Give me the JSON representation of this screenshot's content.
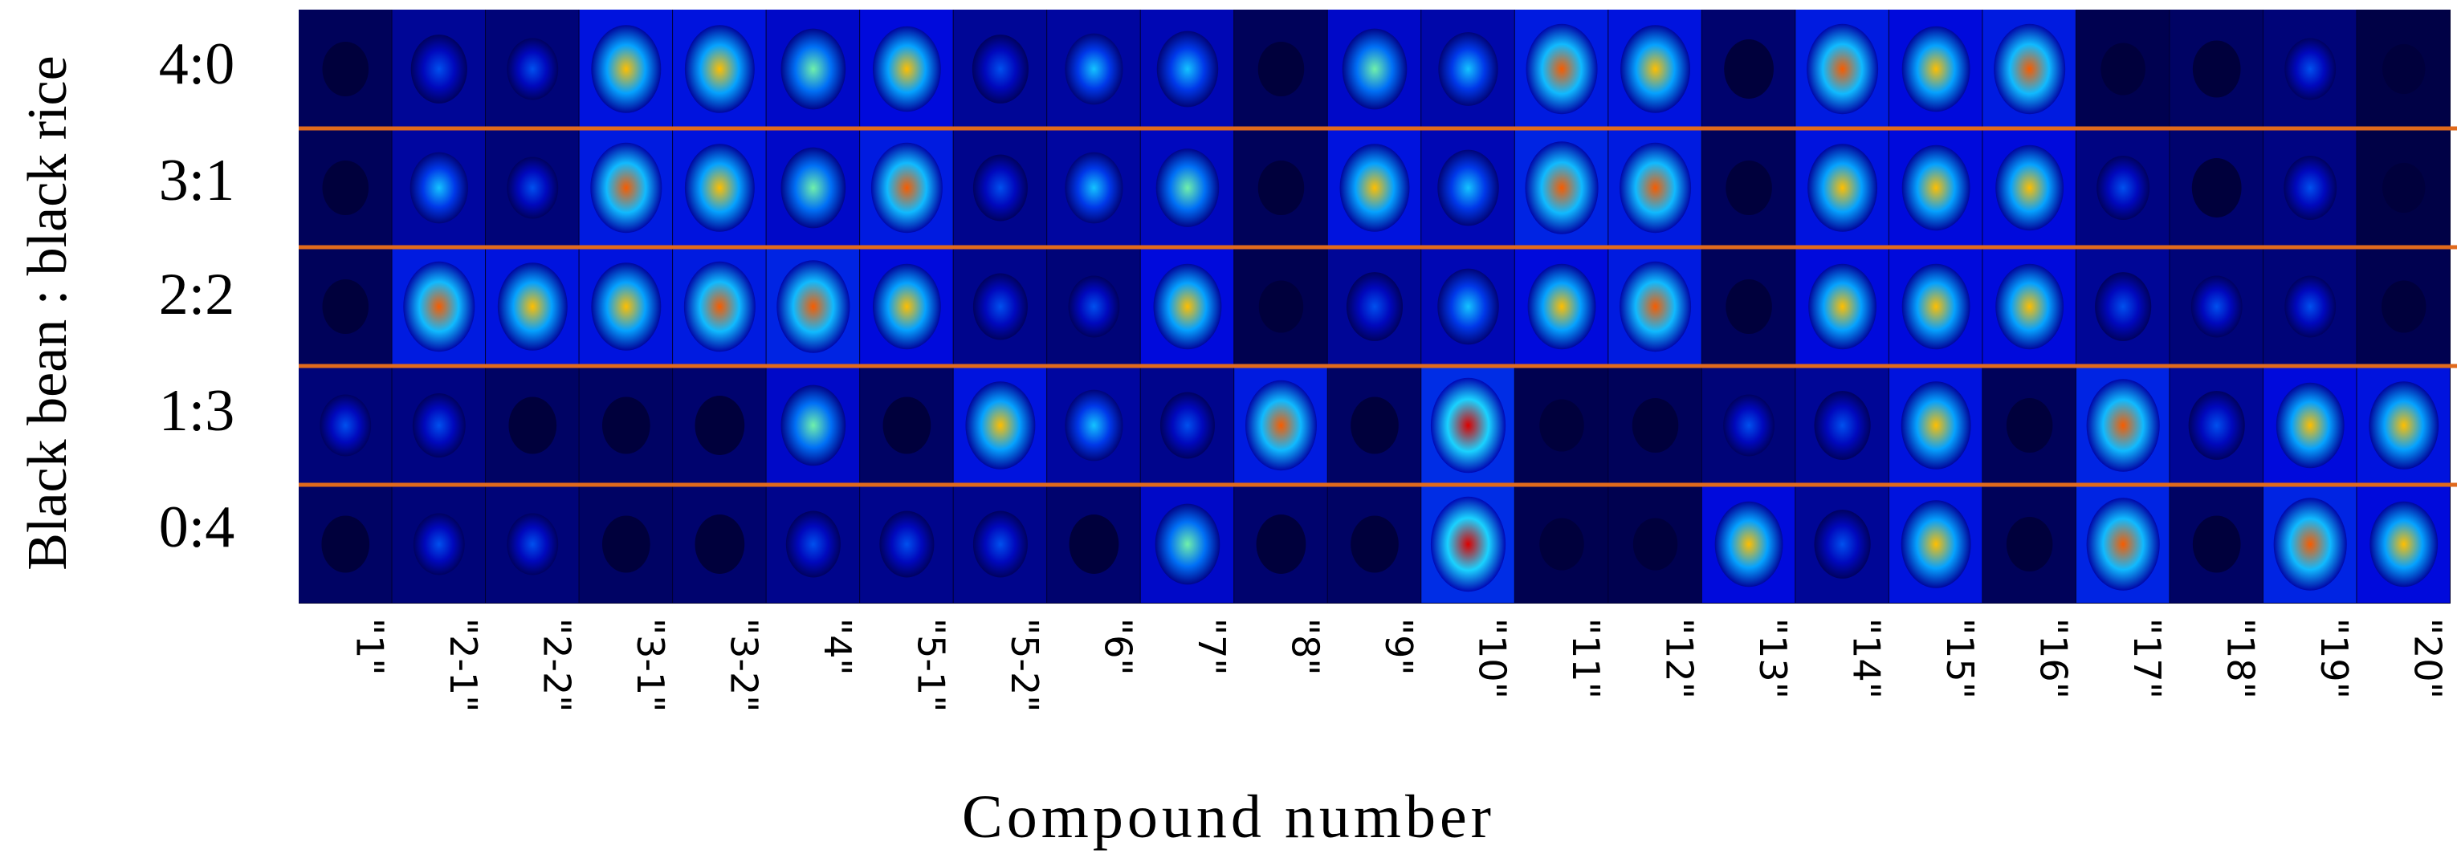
{
  "chart_data": {
    "type": "heatmap",
    "ylabel": "Black bean : black rice",
    "xlabel": "Compound number",
    "rows": [
      "4:0",
      "3:1",
      "2:2",
      "1:3",
      "0:4"
    ],
    "categories": [
      "\"1\"",
      "\"2-1\"",
      "\"2-2\"",
      "\"3-1\"",
      "\"3-2\"",
      "\"4\"",
      "\"5-1\"",
      "\"5-2\"",
      "\"6\"",
      "\"7\"",
      "\"8\"",
      "\"9\"",
      "\"10\"",
      "\"11\"",
      "\"12\"",
      "\"13\"",
      "\"14\"",
      "\"15\"",
      "\"16\"",
      "\"17\"",
      "\"18\"",
      "\"19\"",
      "\"20\""
    ],
    "values": [
      [
        0.15,
        0.45,
        0.3,
        0.85,
        0.85,
        0.7,
        0.8,
        0.45,
        0.5,
        0.6,
        0.15,
        0.7,
        0.55,
        0.9,
        0.85,
        0.25,
        0.9,
        0.8,
        0.9,
        0.1,
        0.2,
        0.3,
        0.05
      ],
      [
        0.15,
        0.5,
        0.3,
        0.9,
        0.85,
        0.7,
        0.9,
        0.4,
        0.5,
        0.65,
        0.15,
        0.85,
        0.6,
        0.95,
        0.9,
        0.15,
        0.85,
        0.8,
        0.8,
        0.35,
        0.25,
        0.35,
        0.05
      ],
      [
        0.15,
        0.9,
        0.85,
        0.85,
        0.9,
        0.95,
        0.8,
        0.4,
        0.3,
        0.8,
        0.1,
        0.45,
        0.6,
        0.8,
        0.9,
        0.15,
        0.8,
        0.8,
        0.8,
        0.45,
        0.3,
        0.3,
        0.1
      ],
      [
        0.3,
        0.35,
        0.2,
        0.2,
        0.25,
        0.7,
        0.2,
        0.85,
        0.5,
        0.4,
        0.9,
        0.2,
        1.0,
        0.1,
        0.15,
        0.3,
        0.45,
        0.85,
        0.15,
        0.95,
        0.45,
        0.8,
        0.85
      ],
      [
        0.2,
        0.3,
        0.3,
        0.2,
        0.25,
        0.4,
        0.4,
        0.4,
        0.25,
        0.7,
        0.25,
        0.2,
        1.0,
        0.1,
        0.1,
        0.8,
        0.45,
        0.85,
        0.15,
        0.95,
        0.2,
        0.95,
        0.8
      ]
    ],
    "grid": false,
    "colors": {
      "separator": "#e06a1c"
    }
  }
}
